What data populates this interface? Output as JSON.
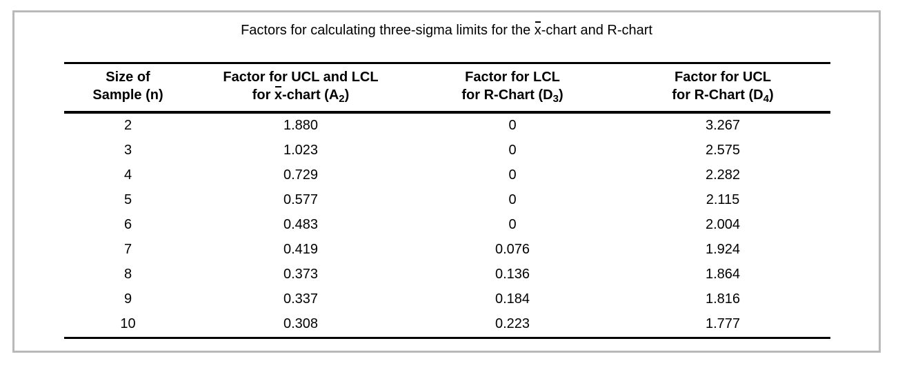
{
  "title": {
    "pre": "Factors for calculating three-sigma limits for the ",
    "xbar": "x",
    "post": "-chart and R-chart"
  },
  "table": {
    "headers": {
      "col1": {
        "line1": "Size of",
        "line2": "Sample (n)"
      },
      "col2": {
        "line1": "Factor for UCL and LCL",
        "line2_pre": "for ",
        "line2_xbar": "x",
        "line2_mid": "-chart (A",
        "line2_sub": "2",
        "line2_post": ")"
      },
      "col3": {
        "line1": "Factor for LCL",
        "line2_pre": "for R-Chart (D",
        "line2_sub": "3",
        "line2_post": ")"
      },
      "col4": {
        "line1": "Factor for UCL",
        "line2_pre": "for R-Chart (D",
        "line2_sub": "4",
        "line2_post": ")"
      }
    },
    "rows": [
      [
        "2",
        "1.880",
        "0",
        "3.267"
      ],
      [
        "3",
        "1.023",
        "0",
        "2.575"
      ],
      [
        "4",
        "0.729",
        "0",
        "2.282"
      ],
      [
        "5",
        "0.577",
        "0",
        "2.115"
      ],
      [
        "6",
        "0.483",
        "0",
        "2.004"
      ],
      [
        "7",
        "0.419",
        "0.076",
        "1.924"
      ],
      [
        "8",
        "0.373",
        "0.136",
        "1.864"
      ],
      [
        "9",
        "0.337",
        "0.184",
        "1.816"
      ],
      [
        "10",
        "0.308",
        "0.223",
        "1.777"
      ]
    ]
  },
  "colors": {
    "frame_border": "#b9b9b9",
    "text": "#000000",
    "background": "#ffffff"
  },
  "chart_data": {
    "type": "table",
    "title": "Factors for calculating three-sigma limits for the x̄-chart and R-chart",
    "columns": [
      "Size of Sample (n)",
      "Factor for UCL and LCL for x̄-chart (A2)",
      "Factor for LCL for R-Chart (D3)",
      "Factor for UCL for R-Chart (D4)"
    ],
    "rows": [
      [
        2,
        1.88,
        0,
        3.267
      ],
      [
        3,
        1.023,
        0,
        2.575
      ],
      [
        4,
        0.729,
        0,
        2.282
      ],
      [
        5,
        0.577,
        0,
        2.115
      ],
      [
        6,
        0.483,
        0,
        2.004
      ],
      [
        7,
        0.419,
        0.076,
        1.924
      ],
      [
        8,
        0.373,
        0.136,
        1.864
      ],
      [
        9,
        0.337,
        0.184,
        1.816
      ],
      [
        10,
        0.308,
        0.223,
        1.777
      ]
    ]
  }
}
